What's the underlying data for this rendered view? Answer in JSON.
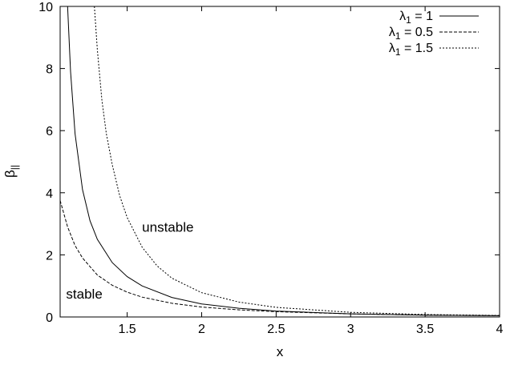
{
  "chart_data": {
    "type": "line",
    "xlabel": "x",
    "ylabel": {
      "base": "β",
      "sub": "||"
    },
    "xlim": [
      1.05,
      4
    ],
    "ylim": [
      0,
      10
    ],
    "x_ticks": [
      1.5,
      2,
      2.5,
      3,
      3.5,
      4
    ],
    "x_tick_labels": [
      "1.5",
      "2",
      "2.5",
      "3",
      "3.5",
      "4"
    ],
    "y_ticks": [
      0,
      2,
      4,
      6,
      8,
      10
    ],
    "y_tick_labels": [
      "0",
      "2",
      "4",
      "6",
      "8",
      "10"
    ],
    "grid": false,
    "legend_position": "top-right",
    "series": [
      {
        "name": "λ1 = 1",
        "name_parts": {
          "base": "λ",
          "sub": "1",
          "rest": " = 1"
        },
        "dash": "solid",
        "x": [
          1.1,
          1.12,
          1.15,
          1.2,
          1.25,
          1.3,
          1.4,
          1.5,
          1.6,
          1.8,
          2.0,
          2.25,
          2.5,
          3.0,
          3.5,
          4.0
        ],
        "y": [
          10.0,
          7.9,
          5.9,
          4.1,
          3.1,
          2.5,
          1.75,
          1.3,
          1.0,
          0.63,
          0.42,
          0.28,
          0.19,
          0.1,
          0.06,
          0.04
        ]
      },
      {
        "name": "λ1 = 0.5",
        "name_parts": {
          "base": "λ",
          "sub": "1",
          "rest": " = 0.5"
        },
        "dash": "dashed",
        "x": [
          1.05,
          1.1,
          1.15,
          1.2,
          1.3,
          1.4,
          1.5,
          1.6,
          1.8,
          2.0,
          2.25,
          2.5,
          3.0,
          3.5,
          4.0
        ],
        "y": [
          3.75,
          2.9,
          2.3,
          1.9,
          1.35,
          1.02,
          0.8,
          0.64,
          0.44,
          0.32,
          0.23,
          0.17,
          0.1,
          0.06,
          0.04
        ]
      },
      {
        "name": "λ1 = 1.5",
        "name_parts": {
          "base": "λ",
          "sub": "1",
          "rest": " = 1.5"
        },
        "dash": "dotted",
        "x": [
          1.28,
          1.3,
          1.33,
          1.36,
          1.4,
          1.45,
          1.5,
          1.6,
          1.7,
          1.8,
          2.0,
          2.25,
          2.5,
          3.0,
          3.5,
          4.0
        ],
        "y": [
          10.0,
          8.6,
          7.0,
          5.9,
          4.9,
          3.9,
          3.2,
          2.25,
          1.65,
          1.25,
          0.78,
          0.48,
          0.31,
          0.15,
          0.08,
          0.05
        ]
      }
    ],
    "annotations": [
      {
        "text": "unstable",
        "x": 1.6,
        "y": 2.9
      },
      {
        "text": "stable",
        "x": 1.09,
        "y": 0.75
      }
    ]
  }
}
